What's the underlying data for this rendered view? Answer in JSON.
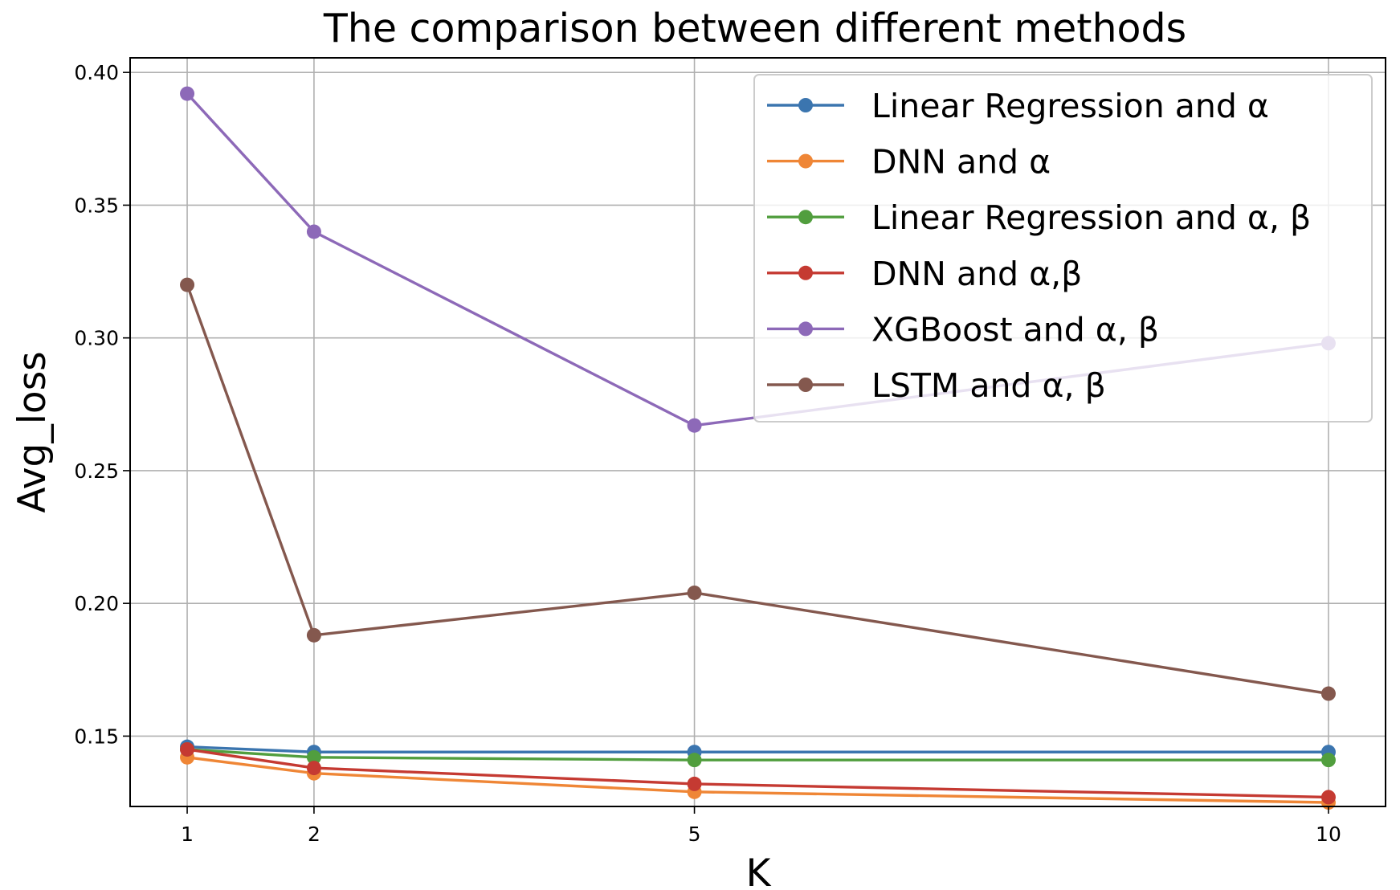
{
  "chart_data": {
    "type": "line",
    "title": "The comparison between different methods",
    "xlabel": "K",
    "ylabel": "Avg_loss",
    "x": [
      1,
      2,
      5,
      10
    ],
    "xticks": [
      "1",
      "2",
      "5",
      "10"
    ],
    "yticks": [
      "0.15",
      "0.20",
      "0.25",
      "0.30",
      "0.35",
      "0.40"
    ],
    "xlim": [
      0.55,
      10.45
    ],
    "ylim": [
      0.1235,
      0.4055
    ],
    "grid": true,
    "legend_position": "top-right",
    "series": [
      {
        "name": "Linear Regression and α",
        "color": "#3b75af",
        "values": [
          0.146,
          0.144,
          0.144,
          0.144
        ]
      },
      {
        "name": "DNN and α",
        "color": "#ef8636",
        "values": [
          0.142,
          0.136,
          0.129,
          0.125
        ]
      },
      {
        "name": "Linear Regression and α, β",
        "color": "#519e3e",
        "values": [
          0.145,
          0.142,
          0.141,
          0.141
        ]
      },
      {
        "name": "DNN and α,β",
        "color": "#c53a32",
        "values": [
          0.145,
          0.138,
          0.132,
          0.127
        ]
      },
      {
        "name": "XGBoost and α, β",
        "color": "#8d69b8",
        "values": [
          0.392,
          0.34,
          0.267,
          0.298
        ]
      },
      {
        "name": "LSTM and α, β",
        "color": "#84584e",
        "values": [
          0.32,
          0.188,
          0.204,
          0.166
        ]
      }
    ]
  }
}
